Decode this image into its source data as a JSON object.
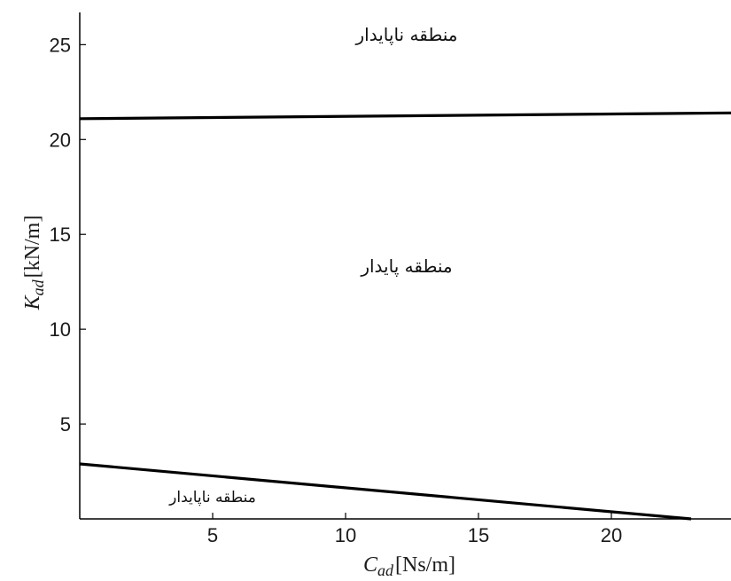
{
  "chart_data": {
    "type": "line",
    "title": "",
    "xlabel": {
      "symbol": "C",
      "subscript": "ad",
      "unit": "[Ns/m]"
    },
    "ylabel": {
      "symbol": "K",
      "subscript": "ad",
      "unit": "[kN/m]"
    },
    "xlim": [
      0,
      24.5
    ],
    "ylim": [
      0,
      26.7
    ],
    "xticks": [
      5,
      10,
      15,
      20
    ],
    "yticks": [
      5,
      10,
      15,
      20,
      25
    ],
    "grid": false,
    "legend": "none",
    "line_color": "#000000",
    "series": [
      {
        "x": [
          0,
          24.5
        ],
        "y": [
          21.1,
          21.4
        ]
      },
      {
        "x": [
          0,
          23
        ],
        "y": [
          2.9,
          0
        ]
      }
    ],
    "annotations": [
      {
        "text": "منطقه ناپایدار",
        "x": 12.3,
        "y": 25.2
      },
      {
        "text": "منطقه پایدار",
        "x": 12.3,
        "y": 13.0
      },
      {
        "text": "منطقه ناپایدار",
        "x": 5.0,
        "y": 0.9
      }
    ]
  }
}
